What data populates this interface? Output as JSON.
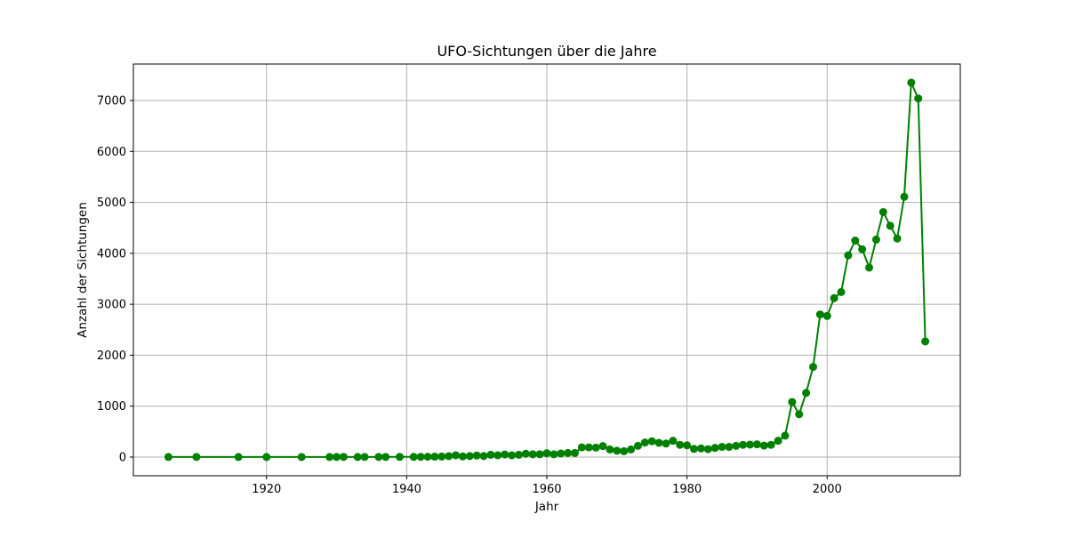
{
  "chart_data": {
    "type": "line",
    "title": "UFO-Sichtungen über die Jahre",
    "xlabel": "Jahr",
    "ylabel": "Anzahl der Sichtungen",
    "xlim": [
      1901,
      2019
    ],
    "ylim": [
      -367,
      7716
    ],
    "xticks": [
      1920,
      1940,
      1960,
      1980,
      2000
    ],
    "yticks": [
      0,
      1000,
      2000,
      3000,
      4000,
      5000,
      6000,
      7000
    ],
    "grid": true,
    "color": "#008000",
    "marker": "circle",
    "series": [
      {
        "x": [
          1906,
          1910,
          1916,
          1920,
          1925,
          1929,
          1930,
          1931,
          1933,
          1934,
          1936,
          1937,
          1939,
          1941,
          1942,
          1943,
          1944,
          1945,
          1946,
          1947,
          1948,
          1949,
          1950,
          1951,
          1952,
          1953,
          1954,
          1955,
          1956,
          1957,
          1958,
          1959,
          1960,
          1961,
          1962,
          1963,
          1964,
          1965,
          1966,
          1967,
          1968,
          1969,
          1970,
          1971,
          1972,
          1973,
          1974,
          1975,
          1976,
          1977,
          1978,
          1979,
          1980,
          1981,
          1982,
          1983,
          1984,
          1985,
          1986,
          1987,
          1988,
          1989,
          1990,
          1991,
          1992,
          1993,
          1994,
          1995,
          1996,
          1997,
          1998,
          1999,
          2000,
          2001,
          2002,
          2003,
          2004,
          2005,
          2006,
          2007,
          2008,
          2009,
          2010,
          2011,
          2012,
          2013,
          2014
        ],
        "y": [
          1,
          2,
          1,
          1,
          1,
          1,
          2,
          2,
          1,
          2,
          2,
          2,
          3,
          3,
          5,
          6,
          8,
          10,
          18,
          35,
          12,
          20,
          30,
          20,
          45,
          35,
          50,
          35,
          45,
          65,
          55,
          55,
          75,
          55,
          70,
          80,
          80,
          190,
          190,
          185,
          215,
          150,
          125,
          115,
          150,
          220,
          285,
          310,
          280,
          265,
          320,
          240,
          230,
          160,
          170,
          155,
          180,
          200,
          200,
          220,
          240,
          245,
          250,
          225,
          240,
          320,
          420,
          1080,
          840,
          1260,
          1770,
          2800,
          2770,
          3120,
          3240,
          3960,
          4250,
          4080,
          3720,
          4270,
          4810,
          4540,
          4290,
          5110,
          7350,
          7040,
          2270
        ]
      }
    ]
  }
}
